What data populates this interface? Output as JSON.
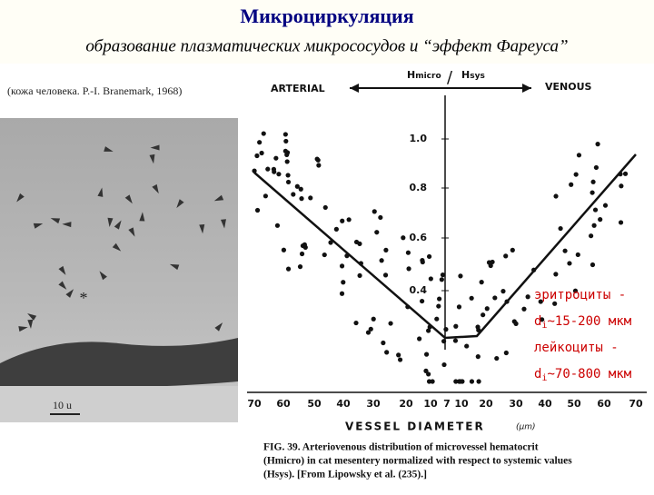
{
  "header": {
    "title": "Микроциркуляция",
    "subtitle": "образование плазматических микрососудов и “эффект Фареуса”"
  },
  "photo": {
    "caption": "(кожа человека. P.-I. Branemark, 1968)",
    "marker": "*",
    "scale": "10 u"
  },
  "figure": {
    "left_label": "ARTERIAL",
    "right_label": "VENOUS",
    "ratio": {
      "num": "H",
      "num_sub": "micro",
      "slash": "/",
      "den": "H",
      "den_sub": "sys"
    },
    "y_ticks": [
      "1.0",
      "0.8",
      "0.6",
      "0.4"
    ],
    "x_ticks": [
      "70",
      "60",
      "50",
      "40",
      "30",
      "20",
      "10",
      "7",
      "10",
      "20",
      "30",
      "40",
      "50",
      "60",
      "70"
    ],
    "x_label": "VESSEL DIAMETER",
    "x_unit": "(μm)",
    "caption": [
      "FIG. 39. Arteriovenous distribution of microvessel hematocrit",
      "(Hmicro) in cat mesentery normalized with respect to systemic values",
      "(Hsys). [From Lipowsky et al. (235).]"
    ]
  },
  "notes": [
    {
      "text": "эритроциты -"
    },
    {
      "d": "d",
      "sub": "i",
      "rest": "~15-200 мкм"
    },
    {
      "text": "лейкоциты -"
    },
    {
      "d": "d",
      "sub": "i",
      "rest": "~70-800 мкм"
    }
  ]
}
